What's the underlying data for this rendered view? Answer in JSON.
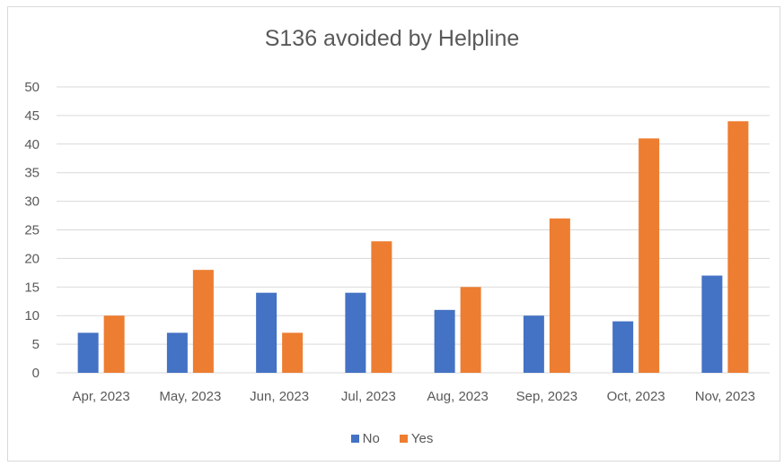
{
  "colors": {
    "no": "#4472c4",
    "yes": "#ed7d31",
    "grid": "#d9d9d9",
    "text": "#595959"
  },
  "chart_data": {
    "type": "bar",
    "title": "S136 avoided by Helpline",
    "categories": [
      "Apr, 2023",
      "May, 2023",
      "Jun, 2023",
      "Jul, 2023",
      "Aug, 2023",
      "Sep, 2023",
      "Oct, 2023",
      "Nov, 2023"
    ],
    "series": [
      {
        "name": "No",
        "values": [
          7,
          7,
          14,
          14,
          11,
          10,
          9,
          17
        ]
      },
      {
        "name": "Yes",
        "values": [
          10,
          18,
          7,
          23,
          15,
          27,
          41,
          44
        ]
      }
    ],
    "ylim": [
      0,
      50
    ],
    "yticks": [
      "0",
      "5",
      "10",
      "15",
      "20",
      "25",
      "30",
      "35",
      "40",
      "45",
      "50"
    ],
    "grid": true,
    "legend_position": "bottom"
  }
}
